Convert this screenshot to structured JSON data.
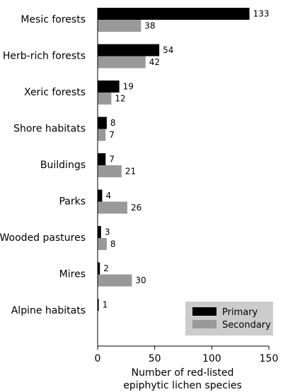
{
  "chart_data": {
    "type": "bar",
    "orientation": "horizontal",
    "categories": [
      "Mesic forests",
      "Herb-rich forests",
      "Xeric forests",
      "Shore habitats",
      "Buildings",
      "Parks",
      "Wooded pastures",
      "Mires",
      "Alpine habitats"
    ],
    "series": [
      {
        "name": "Primary",
        "color": "#000000",
        "values": [
          133,
          54,
          19,
          8,
          7,
          4,
          3,
          2,
          1
        ]
      },
      {
        "name": "Secondary",
        "color": "#999999",
        "values": [
          38,
          42,
          12,
          7,
          21,
          26,
          8,
          30,
          null
        ]
      }
    ],
    "value_labels": [
      [
        "133",
        "54",
        "19",
        "8",
        "7",
        "4",
        "3",
        "2",
        "1"
      ],
      [
        "38",
        "42",
        "12",
        "7",
        "21",
        "26",
        "8",
        "30",
        ""
      ]
    ],
    "xlabel_lines": [
      "Number of red-listed",
      "epiphytic lichen species"
    ],
    "xlim": [
      0,
      150
    ],
    "xticks": [
      0,
      50,
      100,
      150
    ],
    "grid": false,
    "legend": {
      "placement": "bottom-right",
      "background": "#cccccc",
      "entries": [
        "Primary",
        "Secondary"
      ]
    }
  }
}
